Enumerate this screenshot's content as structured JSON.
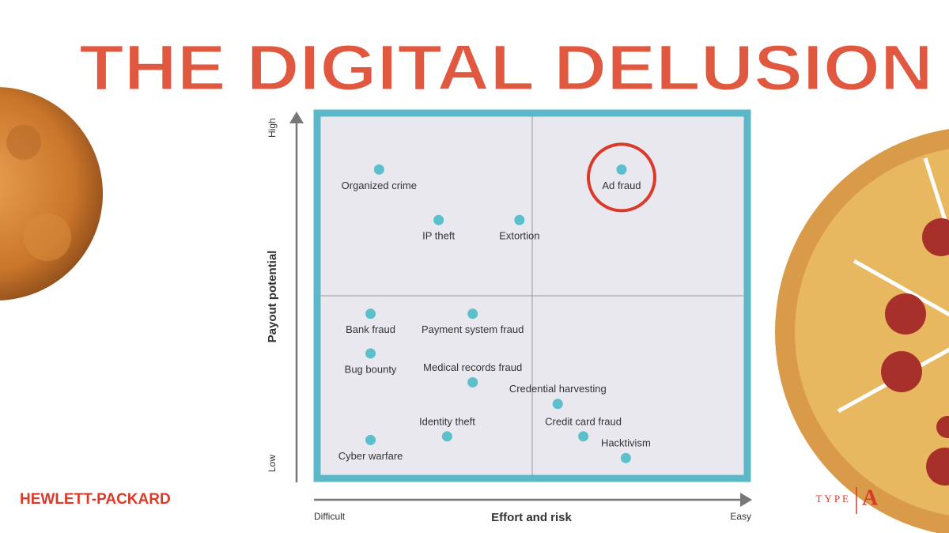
{
  "title": "THE DIGITAL DELUSION",
  "brand_left": "HEWLETT-PACKARD",
  "brand_right": {
    "word": "TYPE",
    "letter": "A"
  },
  "chart_data": {
    "type": "scatter",
    "x_label": "Effort and risk",
    "y_label": "Payout potential",
    "x_end_labels": [
      "Difficult",
      "Easy"
    ],
    "y_end_labels": [
      "Low",
      "High"
    ],
    "xlim": [
      0,
      100
    ],
    "ylim": [
      0,
      100
    ],
    "quadrants": true,
    "frame_color": "#5ab8c8",
    "color": "#5bbfcc",
    "labels": [
      "Organized crime",
      "Ad fraud",
      "IP theft",
      "Extortion",
      "Bank fraud",
      "Payment system fraud",
      "Bug bounty",
      "Medical records fraud",
      "Credential harvesting",
      "Identity theft",
      "Credit card fraud",
      "Cyber warfare",
      "Hacktivism"
    ],
    "x": [
      14,
      71,
      28,
      47,
      12,
      36,
      12,
      36,
      56,
      30,
      62,
      12,
      72
    ],
    "y": [
      85,
      85,
      71,
      71,
      45,
      45,
      34,
      26,
      20,
      11,
      11,
      10,
      5
    ],
    "highlighted": "Ad fraud"
  }
}
